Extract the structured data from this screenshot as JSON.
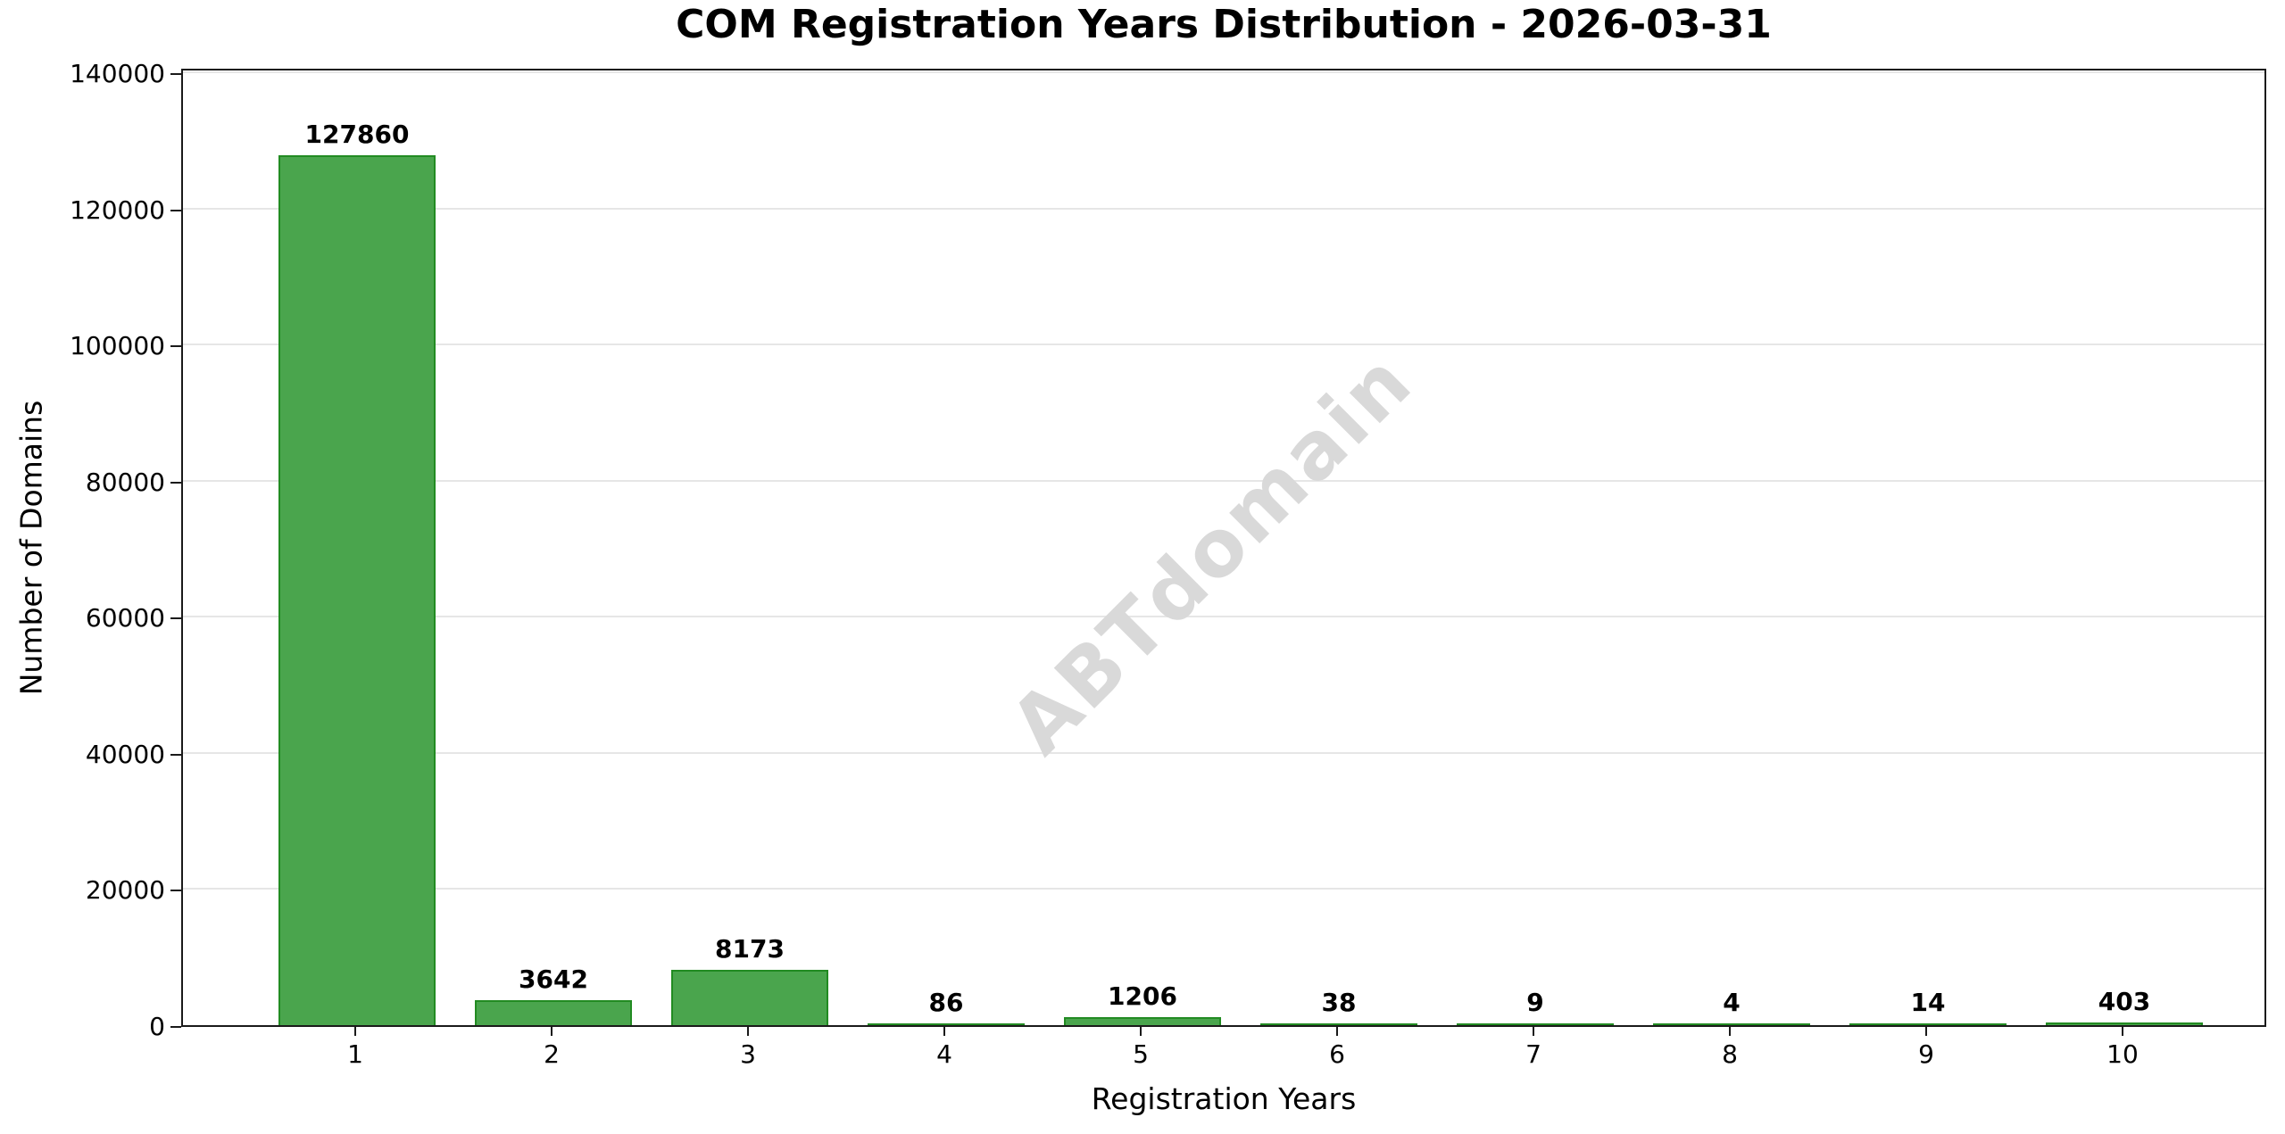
{
  "watermark": "ABTdomain",
  "chart_data": {
    "type": "bar",
    "title": "COM Registration Years Distribution - 2026-03-31",
    "xlabel": "Registration Years",
    "ylabel": "Number of Domains",
    "categories": [
      "1",
      "2",
      "3",
      "4",
      "5",
      "6",
      "7",
      "8",
      "9",
      "10"
    ],
    "values": [
      127860,
      3642,
      8173,
      86,
      1206,
      38,
      9,
      4,
      14,
      403
    ],
    "value_labels": [
      "127860",
      "3642",
      "8173",
      "86",
      "1206",
      "38",
      "9",
      "4",
      "14",
      "403"
    ],
    "ylim": [
      0,
      140000
    ],
    "yticks": [
      0,
      20000,
      40000,
      60000,
      80000,
      100000,
      120000,
      140000
    ],
    "grid": true,
    "legend": "none",
    "bar_fill_color": "#4aa54d",
    "bar_edge_color": "#228b22",
    "gridline_color": "#e6e6e6",
    "watermark_color": "#d9d9d9"
  }
}
